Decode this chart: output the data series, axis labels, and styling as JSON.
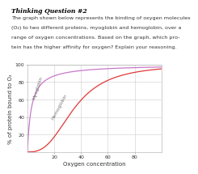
{
  "title": "Thinking Question #2",
  "desc_line1": "The graph shown below represents the binding of oxygen molecules",
  "desc_line2": "(O₂) to two different proteins, myoglobin and hemoglobin, over a",
  "desc_line3": "range of oxygen concentrations. Based on the graph, which pro-",
  "desc_line4": "tein has the higher affinity for oxygen? Explain your reasoning.",
  "xlabel": "Oxygen concentration",
  "ylabel": "% of protein bound to O₂",
  "xlim": [
    0,
    100
  ],
  "ylim": [
    0,
    100
  ],
  "xticks": [
    20,
    40,
    60,
    80
  ],
  "yticks": [
    20,
    40,
    60,
    80,
    100
  ],
  "myoglobin_color": "#c878c8",
  "hemoglobin_color": "#e03838",
  "myoglobin_Kd": 3.0,
  "hemoglobin_n": 2.8,
  "hemoglobin_P50": 35,
  "background_color": "#ffffff",
  "grid_color": "#cccccc",
  "tick_fontsize": 4.5,
  "label_fontsize": 5.0,
  "title_fontsize": 5.5,
  "desc_fontsize": 4.6,
  "curve_label_fontsize": 4.2
}
